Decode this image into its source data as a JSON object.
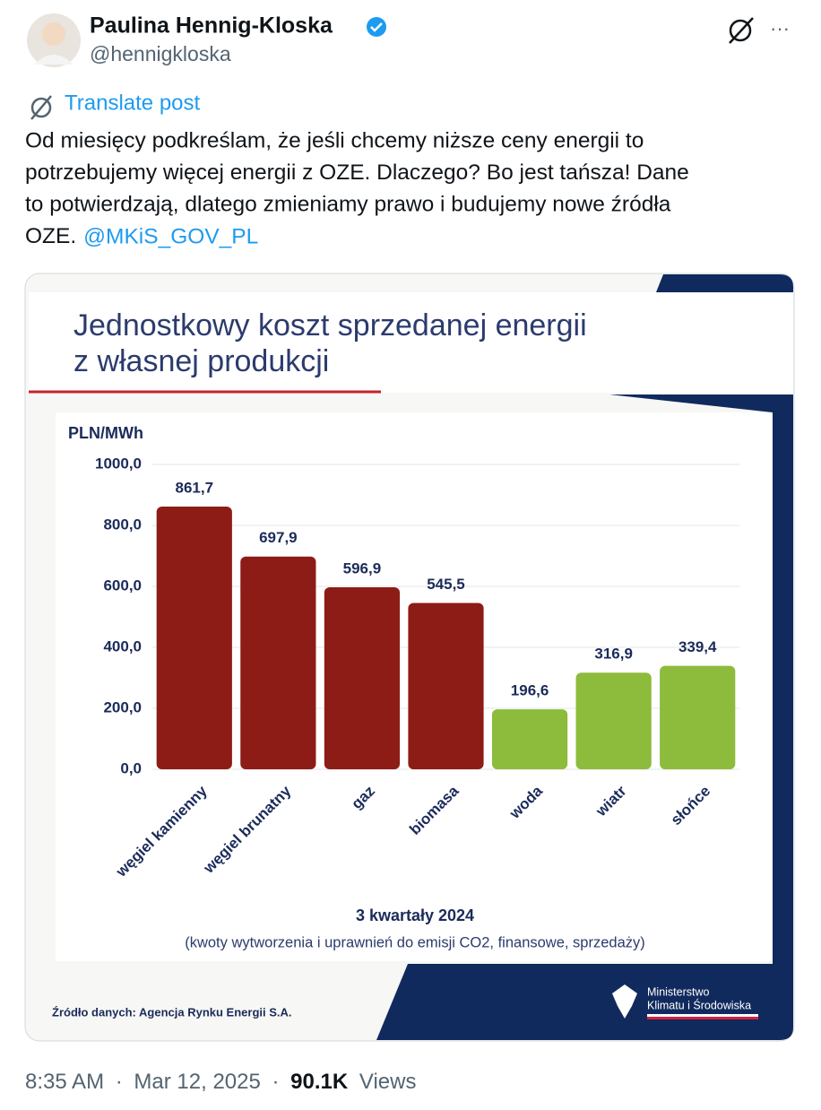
{
  "header": {
    "name": "Paulina Hennig-Kloska",
    "handle": "@hennigkloska",
    "more": "···"
  },
  "post": {
    "translate": "Translate post",
    "lines": [
      "Od miesięcy podkreślam, że jeśli chcemy niższe ceny energii to",
      "potrzebujemy więcej energii z OZE. Dlaczego? Bo jest tańsza! Dane",
      "to potwierdzają, dlatego zmieniamy prawo i budujemy nowe źródła",
      "OZE."
    ],
    "mention": "@MKiS_GOV_PL"
  },
  "chart_data": {
    "type": "bar",
    "title": [
      "Jednostkowy koszt sprzedanej energii",
      "z własnej produkcji"
    ],
    "y_label": "PLN/MWh",
    "categories": [
      "węgiel kamienny",
      "węgiel brunatny",
      "gaz",
      "biomasa",
      "woda",
      "wiatr",
      "słońce"
    ],
    "values": [
      861.7,
      697.9,
      596.9,
      545.5,
      196.6,
      316.9,
      339.4
    ],
    "value_labels": [
      "861,7",
      "697,9",
      "596,9",
      "545,5",
      "196,6",
      "316,9",
      "339,4"
    ],
    "colors": [
      "#8d1c17",
      "#8d1c17",
      "#8d1c17",
      "#8d1c17",
      "#8dbb3b",
      "#8dbb3b",
      "#8dbb3b"
    ],
    "ylim": [
      0,
      1000
    ],
    "yticks": [
      {
        "value": 0,
        "label": "0,0"
      },
      {
        "value": 200,
        "label": "200,0"
      },
      {
        "value": 400,
        "label": "400,0"
      },
      {
        "value": 600,
        "label": "600,0"
      },
      {
        "value": 800,
        "label": "800,0"
      },
      {
        "value": 1000,
        "label": "1000,0"
      }
    ],
    "grid": true,
    "x_title": "3 kwartały 2024",
    "note": "(kwoty wytworzenia i uprawnień do emisji CO2, finansowe, sprzedaży)",
    "source": "Źródło danych: Agencja Rynku Energii S.A.",
    "logo": [
      "Ministerstwo",
      "Klimatu i Środowiska"
    ]
  },
  "footer": {
    "time": "8:35 AM",
    "separator": "·",
    "date": "Mar 12, 2025",
    "views_count": "90.1K",
    "views_label": "Views"
  }
}
